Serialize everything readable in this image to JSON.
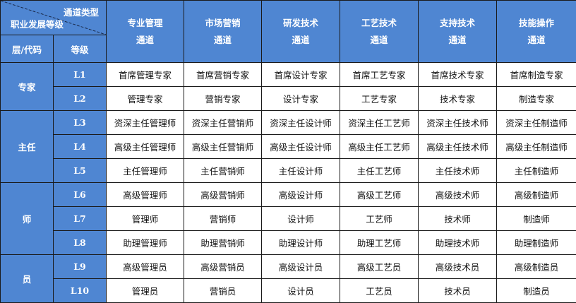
{
  "corner": {
    "top": "通道类型",
    "bottom": "职业发展等级"
  },
  "sub_headers": {
    "layer": "层/代码",
    "grade": "等级"
  },
  "channels": [
    {
      "line1": "专业管理",
      "line2": "通道"
    },
    {
      "line1": "市场营销",
      "line2": "通道"
    },
    {
      "line1": "研发技术",
      "line2": "通道"
    },
    {
      "line1": "工艺技术",
      "line2": "通道"
    },
    {
      "line1": "支持技术",
      "line2": "通道"
    },
    {
      "line1": "技能操作",
      "line2": "通道"
    }
  ],
  "layers": [
    "专家",
    "主任",
    "师",
    "员"
  ],
  "rows": [
    {
      "grade": "L1",
      "cells": [
        "首席管理专家",
        "首席营销专家",
        "首席设计专家",
        "首席工艺专家",
        "首席技术专家",
        "首席制造专家"
      ]
    },
    {
      "grade": "L2",
      "cells": [
        "管理专家",
        "营销专家",
        "设计专家",
        "工艺专家",
        "技术专家",
        "制造专家"
      ]
    },
    {
      "grade": "L3",
      "cells": [
        "资深主任管理师",
        "资深主任营销师",
        "资深主任设计师",
        "资深主任工艺师",
        "资深主任技术师",
        "资深主任制造师"
      ]
    },
    {
      "grade": "L4",
      "cells": [
        "高级主任管理师",
        "高级主任营销师",
        "高级主任设计师",
        "高级主任工艺师",
        "高级主任技术师",
        "高级主任制造师"
      ]
    },
    {
      "grade": "L5",
      "cells": [
        "主任管理师",
        "主任营销师",
        "主任设计师",
        "主任工艺师",
        "主任技术师",
        "主任制造师"
      ]
    },
    {
      "grade": "L6",
      "cells": [
        "高级管理师",
        "高级营销师",
        "高级设计师",
        "高级工艺师",
        "高级技术师",
        "高级制造师"
      ]
    },
    {
      "grade": "L7",
      "cells": [
        "管理师",
        "营销师",
        "设计师",
        "工艺师",
        "技术师",
        "制造师"
      ]
    },
    {
      "grade": "L8",
      "cells": [
        "助理管理师",
        "助理营销师",
        "助理设计师",
        "助理工艺师",
        "助理技术师",
        "助理制造师"
      ]
    },
    {
      "grade": "L9",
      "cells": [
        "高级管理员",
        "高级营销员",
        "高级设计员",
        "高级工艺员",
        "高级技术员",
        "高级制造员"
      ]
    },
    {
      "grade": "L10",
      "cells": [
        "管理员",
        "营销员",
        "设计员",
        "工艺员",
        "技术员",
        "制造员"
      ]
    }
  ],
  "colors": {
    "header_blue": "#4f86d2"
  }
}
